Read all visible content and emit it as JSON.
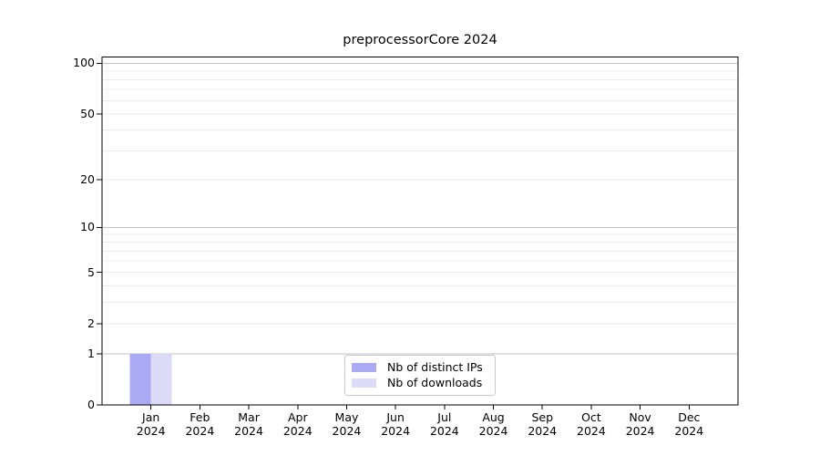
{
  "figure": {
    "background": "#ffffff"
  },
  "chart_data": {
    "type": "bar",
    "title": "preprocessorCore 2024",
    "x_tick_labels": [
      {
        "month": "Jan",
        "year": "2024"
      },
      {
        "month": "Feb",
        "year": "2024"
      },
      {
        "month": "Mar",
        "year": "2024"
      },
      {
        "month": "Apr",
        "year": "2024"
      },
      {
        "month": "May",
        "year": "2024"
      },
      {
        "month": "Jun",
        "year": "2024"
      },
      {
        "month": "Jul",
        "year": "2024"
      },
      {
        "month": "Aug",
        "year": "2024"
      },
      {
        "month": "Sep",
        "year": "2024"
      },
      {
        "month": "Oct",
        "year": "2024"
      },
      {
        "month": "Nov",
        "year": "2024"
      },
      {
        "month": "Dec",
        "year": "2024"
      }
    ],
    "series": [
      {
        "name": "Nb of distinct IPs",
        "color": "#a9a9f4",
        "values": [
          1,
          0,
          0,
          0,
          0,
          0,
          0,
          0,
          0,
          0,
          0,
          0
        ]
      },
      {
        "name": "Nb of downloads",
        "color": "#dbdbf8",
        "values": [
          1,
          0,
          0,
          0,
          0,
          0,
          0,
          0,
          0,
          0,
          0,
          0
        ]
      }
    ],
    "y_axis": {
      "scale": "log1p",
      "tick_values": [
        100,
        50,
        20,
        10,
        5,
        2,
        1,
        0
      ],
      "tick_labels": [
        "100",
        "50",
        "20",
        "10",
        "5",
        "2",
        "1",
        "0"
      ],
      "major_grid_values": [
        1,
        10,
        100
      ],
      "minor_grid_values": [
        2,
        3,
        4,
        5,
        6,
        7,
        8,
        9,
        20,
        30,
        40,
        50,
        60,
        70,
        80,
        90
      ],
      "ylim": [
        0,
        109
      ]
    },
    "grid": true,
    "legend_position": "lower center",
    "colors": {
      "axis": "#000000",
      "major_grid": "#c2c2c2",
      "minor_grid": "#ececec",
      "tick_label": "#000000"
    }
  }
}
